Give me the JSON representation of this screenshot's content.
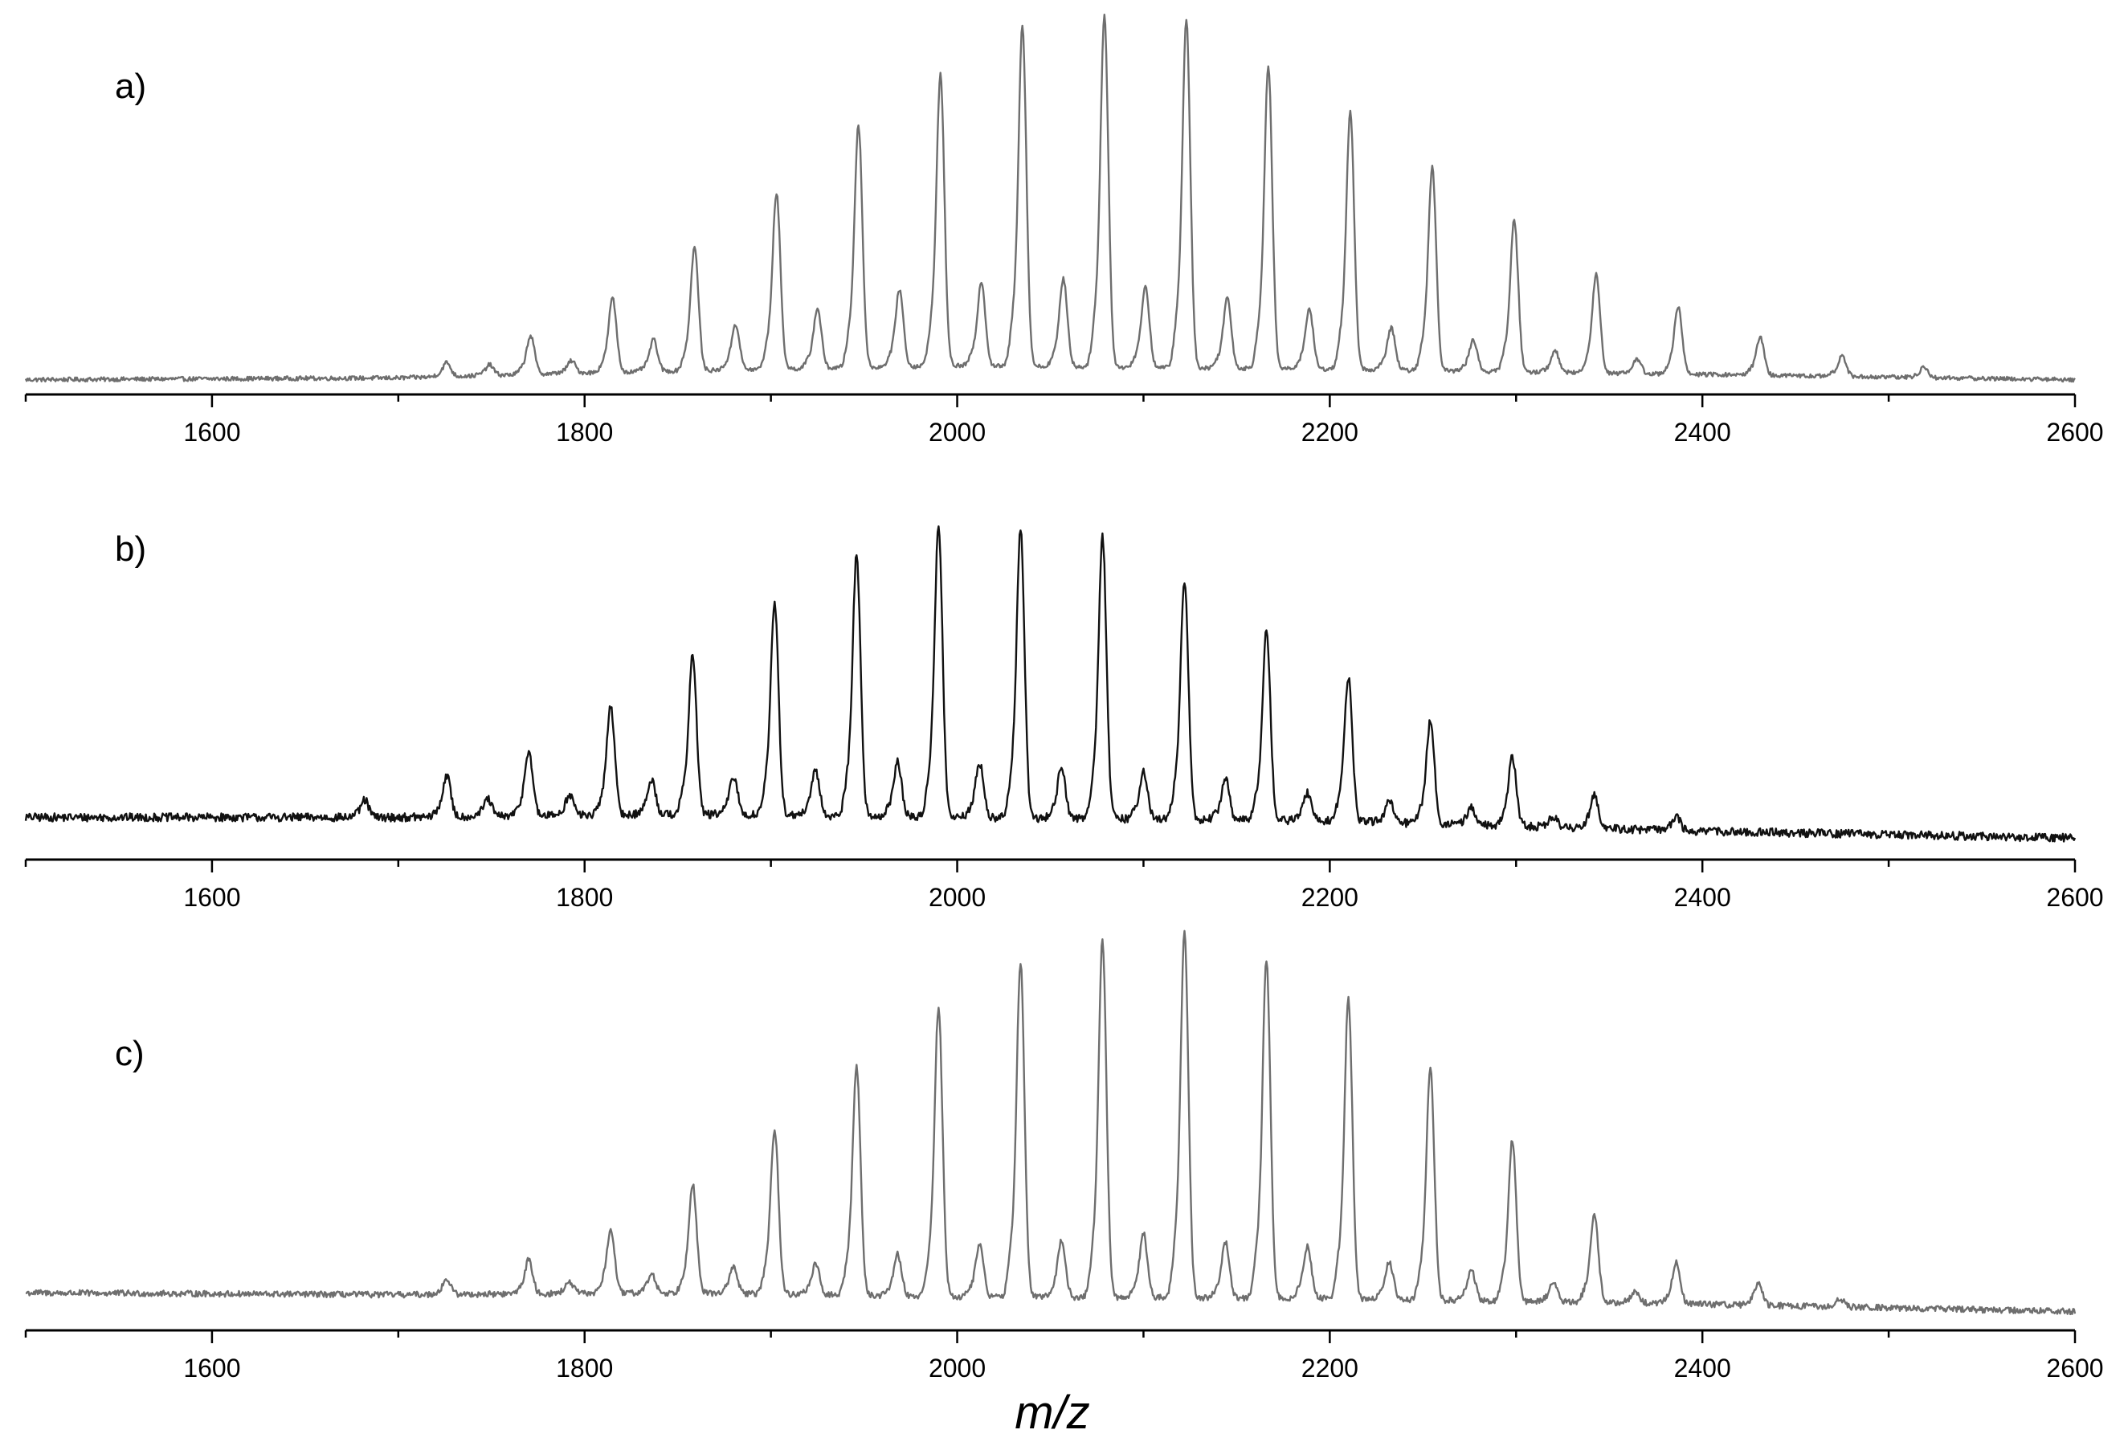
{
  "chart_data": [
    {
      "type": "line",
      "panel_label": "a)",
      "line_color": "#6e6e6e",
      "xlim": [
        1500,
        2600
      ],
      "ylim": [
        0,
        1
      ],
      "x_ticks": [
        "1600",
        "1800",
        "2000",
        "2200",
        "2400",
        "2600"
      ],
      "grid": false,
      "baseline": [
        [
          1500,
          0.01
        ],
        [
          1700,
          0.015
        ],
        [
          1800,
          0.03
        ],
        [
          2000,
          0.05
        ],
        [
          2200,
          0.04
        ],
        [
          2400,
          0.025
        ],
        [
          2600,
          0.01
        ]
      ],
      "noise": 0.006,
      "peaks": [
        {
          "x": 1726,
          "y": 0.04
        },
        {
          "x": 1749,
          "y": 0.03
        },
        {
          "x": 1771,
          "y": 0.11
        },
        {
          "x": 1793,
          "y": 0.035
        },
        {
          "x": 1815,
          "y": 0.21
        },
        {
          "x": 1837,
          "y": 0.09
        },
        {
          "x": 1859,
          "y": 0.35
        },
        {
          "x": 1881,
          "y": 0.13
        },
        {
          "x": 1903,
          "y": 0.5
        },
        {
          "x": 1925,
          "y": 0.17
        },
        {
          "x": 1947,
          "y": 0.69
        },
        {
          "x": 1969,
          "y": 0.22
        },
        {
          "x": 1991,
          "y": 0.83
        },
        {
          "x": 2013,
          "y": 0.24
        },
        {
          "x": 2035,
          "y": 0.97
        },
        {
          "x": 2057,
          "y": 0.25
        },
        {
          "x": 2079,
          "y": 1.0
        },
        {
          "x": 2101,
          "y": 0.23
        },
        {
          "x": 2123,
          "y": 0.99
        },
        {
          "x": 2145,
          "y": 0.2
        },
        {
          "x": 2167,
          "y": 0.86
        },
        {
          "x": 2189,
          "y": 0.17
        },
        {
          "x": 2211,
          "y": 0.73
        },
        {
          "x": 2233,
          "y": 0.12
        },
        {
          "x": 2255,
          "y": 0.58
        },
        {
          "x": 2277,
          "y": 0.09
        },
        {
          "x": 2299,
          "y": 0.43
        },
        {
          "x": 2321,
          "y": 0.06
        },
        {
          "x": 2343,
          "y": 0.28
        },
        {
          "x": 2365,
          "y": 0.04
        },
        {
          "x": 2387,
          "y": 0.19
        },
        {
          "x": 2431,
          "y": 0.11
        },
        {
          "x": 2475,
          "y": 0.06
        },
        {
          "x": 2519,
          "y": 0.03
        }
      ]
    },
    {
      "type": "line",
      "panel_label": "b)",
      "line_color": "#111111",
      "xlim": [
        1500,
        2600
      ],
      "ylim": [
        0,
        1
      ],
      "x_ticks": [
        "1600",
        "1800",
        "2000",
        "2200",
        "2400",
        "2600"
      ],
      "grid": false,
      "baseline": [
        [
          1500,
          0.09
        ],
        [
          1700,
          0.09
        ],
        [
          1850,
          0.1
        ],
        [
          2000,
          0.09
        ],
        [
          2200,
          0.08
        ],
        [
          2400,
          0.05
        ],
        [
          2600,
          0.03
        ]
      ],
      "noise": 0.012,
      "peaks": [
        {
          "x": 1682,
          "y": 0.05
        },
        {
          "x": 1726,
          "y": 0.12
        },
        {
          "x": 1748,
          "y": 0.05
        },
        {
          "x": 1770,
          "y": 0.19
        },
        {
          "x": 1792,
          "y": 0.06
        },
        {
          "x": 1814,
          "y": 0.32
        },
        {
          "x": 1836,
          "y": 0.1
        },
        {
          "x": 1858,
          "y": 0.46
        },
        {
          "x": 1880,
          "y": 0.11
        },
        {
          "x": 1902,
          "y": 0.61
        },
        {
          "x": 1924,
          "y": 0.13
        },
        {
          "x": 1946,
          "y": 0.76
        },
        {
          "x": 1968,
          "y": 0.16
        },
        {
          "x": 1990,
          "y": 0.85
        },
        {
          "x": 2012,
          "y": 0.16
        },
        {
          "x": 2034,
          "y": 0.84
        },
        {
          "x": 2056,
          "y": 0.15
        },
        {
          "x": 2078,
          "y": 0.82
        },
        {
          "x": 2100,
          "y": 0.14
        },
        {
          "x": 2122,
          "y": 0.69
        },
        {
          "x": 2144,
          "y": 0.12
        },
        {
          "x": 2166,
          "y": 0.55
        },
        {
          "x": 2188,
          "y": 0.08
        },
        {
          "x": 2210,
          "y": 0.42
        },
        {
          "x": 2232,
          "y": 0.06
        },
        {
          "x": 2254,
          "y": 0.3
        },
        {
          "x": 2276,
          "y": 0.05
        },
        {
          "x": 2298,
          "y": 0.2
        },
        {
          "x": 2320,
          "y": 0.03
        },
        {
          "x": 2342,
          "y": 0.1
        },
        {
          "x": 2386,
          "y": 0.04
        }
      ]
    },
    {
      "type": "line",
      "panel_label": "c)",
      "line_color": "#6e6e6e",
      "xlim": [
        1500,
        2600
      ],
      "ylim": [
        0,
        1
      ],
      "x_ticks": [
        "1600",
        "1800",
        "2000",
        "2200",
        "2400",
        "2600"
      ],
      "grid": false,
      "baseline": [
        [
          1500,
          0.07
        ],
        [
          1700,
          0.065
        ],
        [
          1850,
          0.07
        ],
        [
          2000,
          0.06
        ],
        [
          2200,
          0.055
        ],
        [
          2400,
          0.04
        ],
        [
          2600,
          0.02
        ]
      ],
      "noise": 0.008,
      "peaks": [
        {
          "x": 1726,
          "y": 0.04
        },
        {
          "x": 1770,
          "y": 0.09
        },
        {
          "x": 1792,
          "y": 0.03
        },
        {
          "x": 1814,
          "y": 0.17
        },
        {
          "x": 1836,
          "y": 0.05
        },
        {
          "x": 1858,
          "y": 0.29
        },
        {
          "x": 1880,
          "y": 0.07
        },
        {
          "x": 1902,
          "y": 0.44
        },
        {
          "x": 1924,
          "y": 0.08
        },
        {
          "x": 1946,
          "y": 0.61
        },
        {
          "x": 1968,
          "y": 0.11
        },
        {
          "x": 1990,
          "y": 0.77
        },
        {
          "x": 2012,
          "y": 0.14
        },
        {
          "x": 2034,
          "y": 0.89
        },
        {
          "x": 2056,
          "y": 0.15
        },
        {
          "x": 2078,
          "y": 0.95
        },
        {
          "x": 2100,
          "y": 0.17
        },
        {
          "x": 2122,
          "y": 0.97
        },
        {
          "x": 2144,
          "y": 0.15
        },
        {
          "x": 2166,
          "y": 0.9
        },
        {
          "x": 2188,
          "y": 0.14
        },
        {
          "x": 2210,
          "y": 0.8
        },
        {
          "x": 2232,
          "y": 0.1
        },
        {
          "x": 2254,
          "y": 0.62
        },
        {
          "x": 2276,
          "y": 0.08
        },
        {
          "x": 2298,
          "y": 0.43
        },
        {
          "x": 2320,
          "y": 0.05
        },
        {
          "x": 2342,
          "y": 0.24
        },
        {
          "x": 2364,
          "y": 0.03
        },
        {
          "x": 2386,
          "y": 0.11
        },
        {
          "x": 2430,
          "y": 0.06
        },
        {
          "x": 2474,
          "y": 0.02
        }
      ]
    }
  ],
  "axis_title": "m/z"
}
